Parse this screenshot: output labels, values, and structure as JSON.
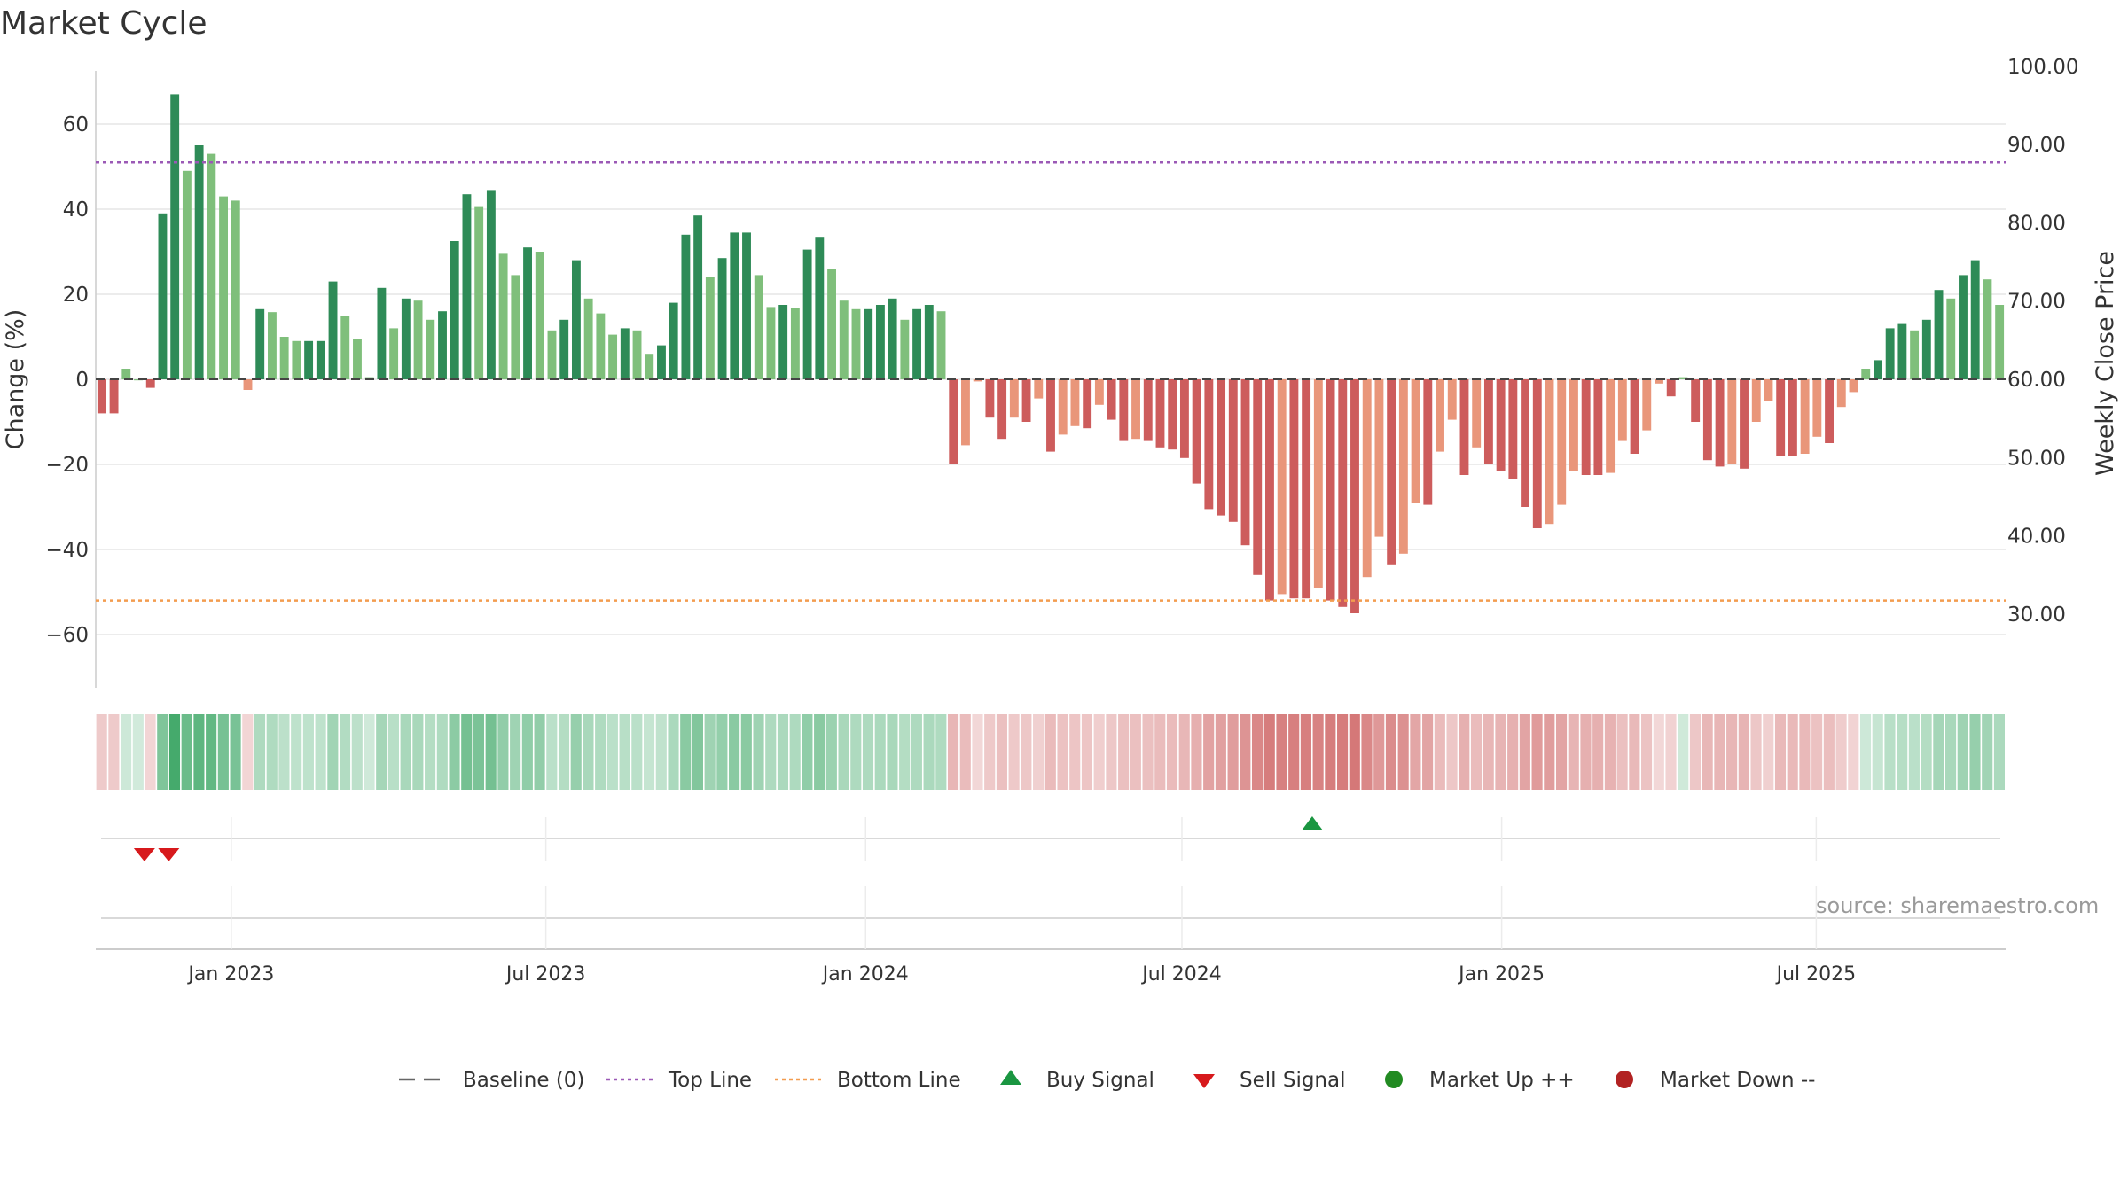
{
  "chart_data": {
    "type": "bar",
    "title": "Market Cycle",
    "ylabel": "Change (%)",
    "y2label": "Weekly Close Price",
    "ylim": [
      -73,
      73
    ],
    "y2lim": [
      22.2,
      104.8
    ],
    "yticks": [
      60,
      40,
      20,
      0,
      -20,
      -40,
      -60
    ],
    "ytick_labels": [
      "60",
      "40",
      "20",
      "0",
      "−20",
      "−40",
      "−60"
    ],
    "y2ticks": [
      100,
      90,
      80,
      70,
      60,
      50,
      40,
      30
    ],
    "y2tick_labels": [
      "100.00",
      "90.00",
      "80.00",
      "70.00",
      "60.00",
      "50.00",
      "40.00",
      "30.00"
    ],
    "x_start": "2022-10-15",
    "x_end": "2025-10-18",
    "xticks": [
      "2023-01-01",
      "2023-07-01",
      "2024-01-01",
      "2024-07-01",
      "2025-01-01",
      "2025-07-01"
    ],
    "xtick_labels": [
      "Jan 2023",
      "Jul 2023",
      "Jan 2024",
      "Jul 2024",
      "Jan 2025",
      "Jul 2025"
    ],
    "top_line": 51,
    "bottom_line": -52,
    "grid": true,
    "legend_placement": "bottom-center",
    "source": "source: sharemaestro.com",
    "colors": {
      "strong_up": "#2e8b57",
      "weak_up": "#7fbf7b",
      "strong_down": "#cd5c5c",
      "weak_down": "#e9967a",
      "top_line": "#9b59b6",
      "bottom_line": "#f39c4f",
      "buy": "#1a9641",
      "sell": "#d7191c",
      "market_up": "#228b22",
      "market_down": "#b22222",
      "baseline": "#666666",
      "grid": "#e6e6e6"
    },
    "series": [
      {
        "name": "Change",
        "values": [
          -8,
          -8,
          2.5,
          0,
          -2,
          39,
          67,
          49,
          55,
          53,
          43,
          42,
          -2.5,
          16.5,
          15.8,
          10,
          9,
          9,
          9,
          23,
          15,
          9.5,
          0.5,
          21.5,
          12,
          19,
          18.5,
          14,
          16,
          32.5,
          43.5,
          40.5,
          44.5,
          29.5,
          24.5,
          31,
          30,
          11.5,
          14,
          28,
          19,
          15.5,
          10.5,
          12,
          11.5,
          6,
          8,
          18,
          34,
          38.5,
          24,
          28.5,
          34.5,
          34.5,
          24.5,
          17,
          17.5,
          16.8,
          30.5,
          33.5,
          26,
          18.5,
          16.5,
          16.5,
          17.5,
          19,
          14,
          16.5,
          17.5,
          16,
          -20,
          -15.5,
          -0.5,
          -9,
          -14,
          -9,
          -10,
          -4.5,
          -17,
          -13,
          -11,
          -11.5,
          -6,
          -9.5,
          -14.5,
          -14,
          -14.5,
          -16,
          -16.5,
          -18.5,
          -24.5,
          -30.5,
          -32,
          -33.5,
          -39,
          -46,
          -52,
          -50.5,
          -51.5,
          -51.5,
          -49,
          -52,
          -53.5,
          -55,
          -46.5,
          -37,
          -43.5,
          -41,
          -29,
          -29.5,
          -17,
          -9.5,
          -22.5,
          -16,
          -20,
          -21.5,
          -23.5,
          -30,
          -35,
          -34,
          -29.5,
          -21.5,
          -22.5,
          -22.5,
          -22,
          -14.5,
          -17.5,
          -12,
          -1,
          -4,
          0.5,
          -10,
          -19,
          -20.5,
          -20,
          -21,
          -10,
          -5,
          -18,
          -18,
          -17.5,
          -13.5,
          -15,
          -6.5,
          -3,
          2.5,
          4.5,
          12,
          13,
          11.5,
          14,
          21,
          19,
          24.5,
          28,
          23.5,
          17.5
        ]
      }
    ],
    "sell_signals": [
      "2022-11-12",
      "2022-11-26"
    ],
    "buy_signals": [
      "2024-09-14"
    ],
    "legend": [
      {
        "label": "Baseline (0)",
        "symbol": "dash"
      },
      {
        "label": "Top Line",
        "symbol": "dot-purple"
      },
      {
        "label": "Bottom Line",
        "symbol": "dot-orange"
      },
      {
        "label": "Buy Signal",
        "symbol": "triangle-up"
      },
      {
        "label": "Sell Signal",
        "symbol": "triangle-down"
      },
      {
        "label": "Market Up ++",
        "symbol": "circle-green"
      },
      {
        "label": "Market Down --",
        "symbol": "circle-red"
      }
    ]
  }
}
